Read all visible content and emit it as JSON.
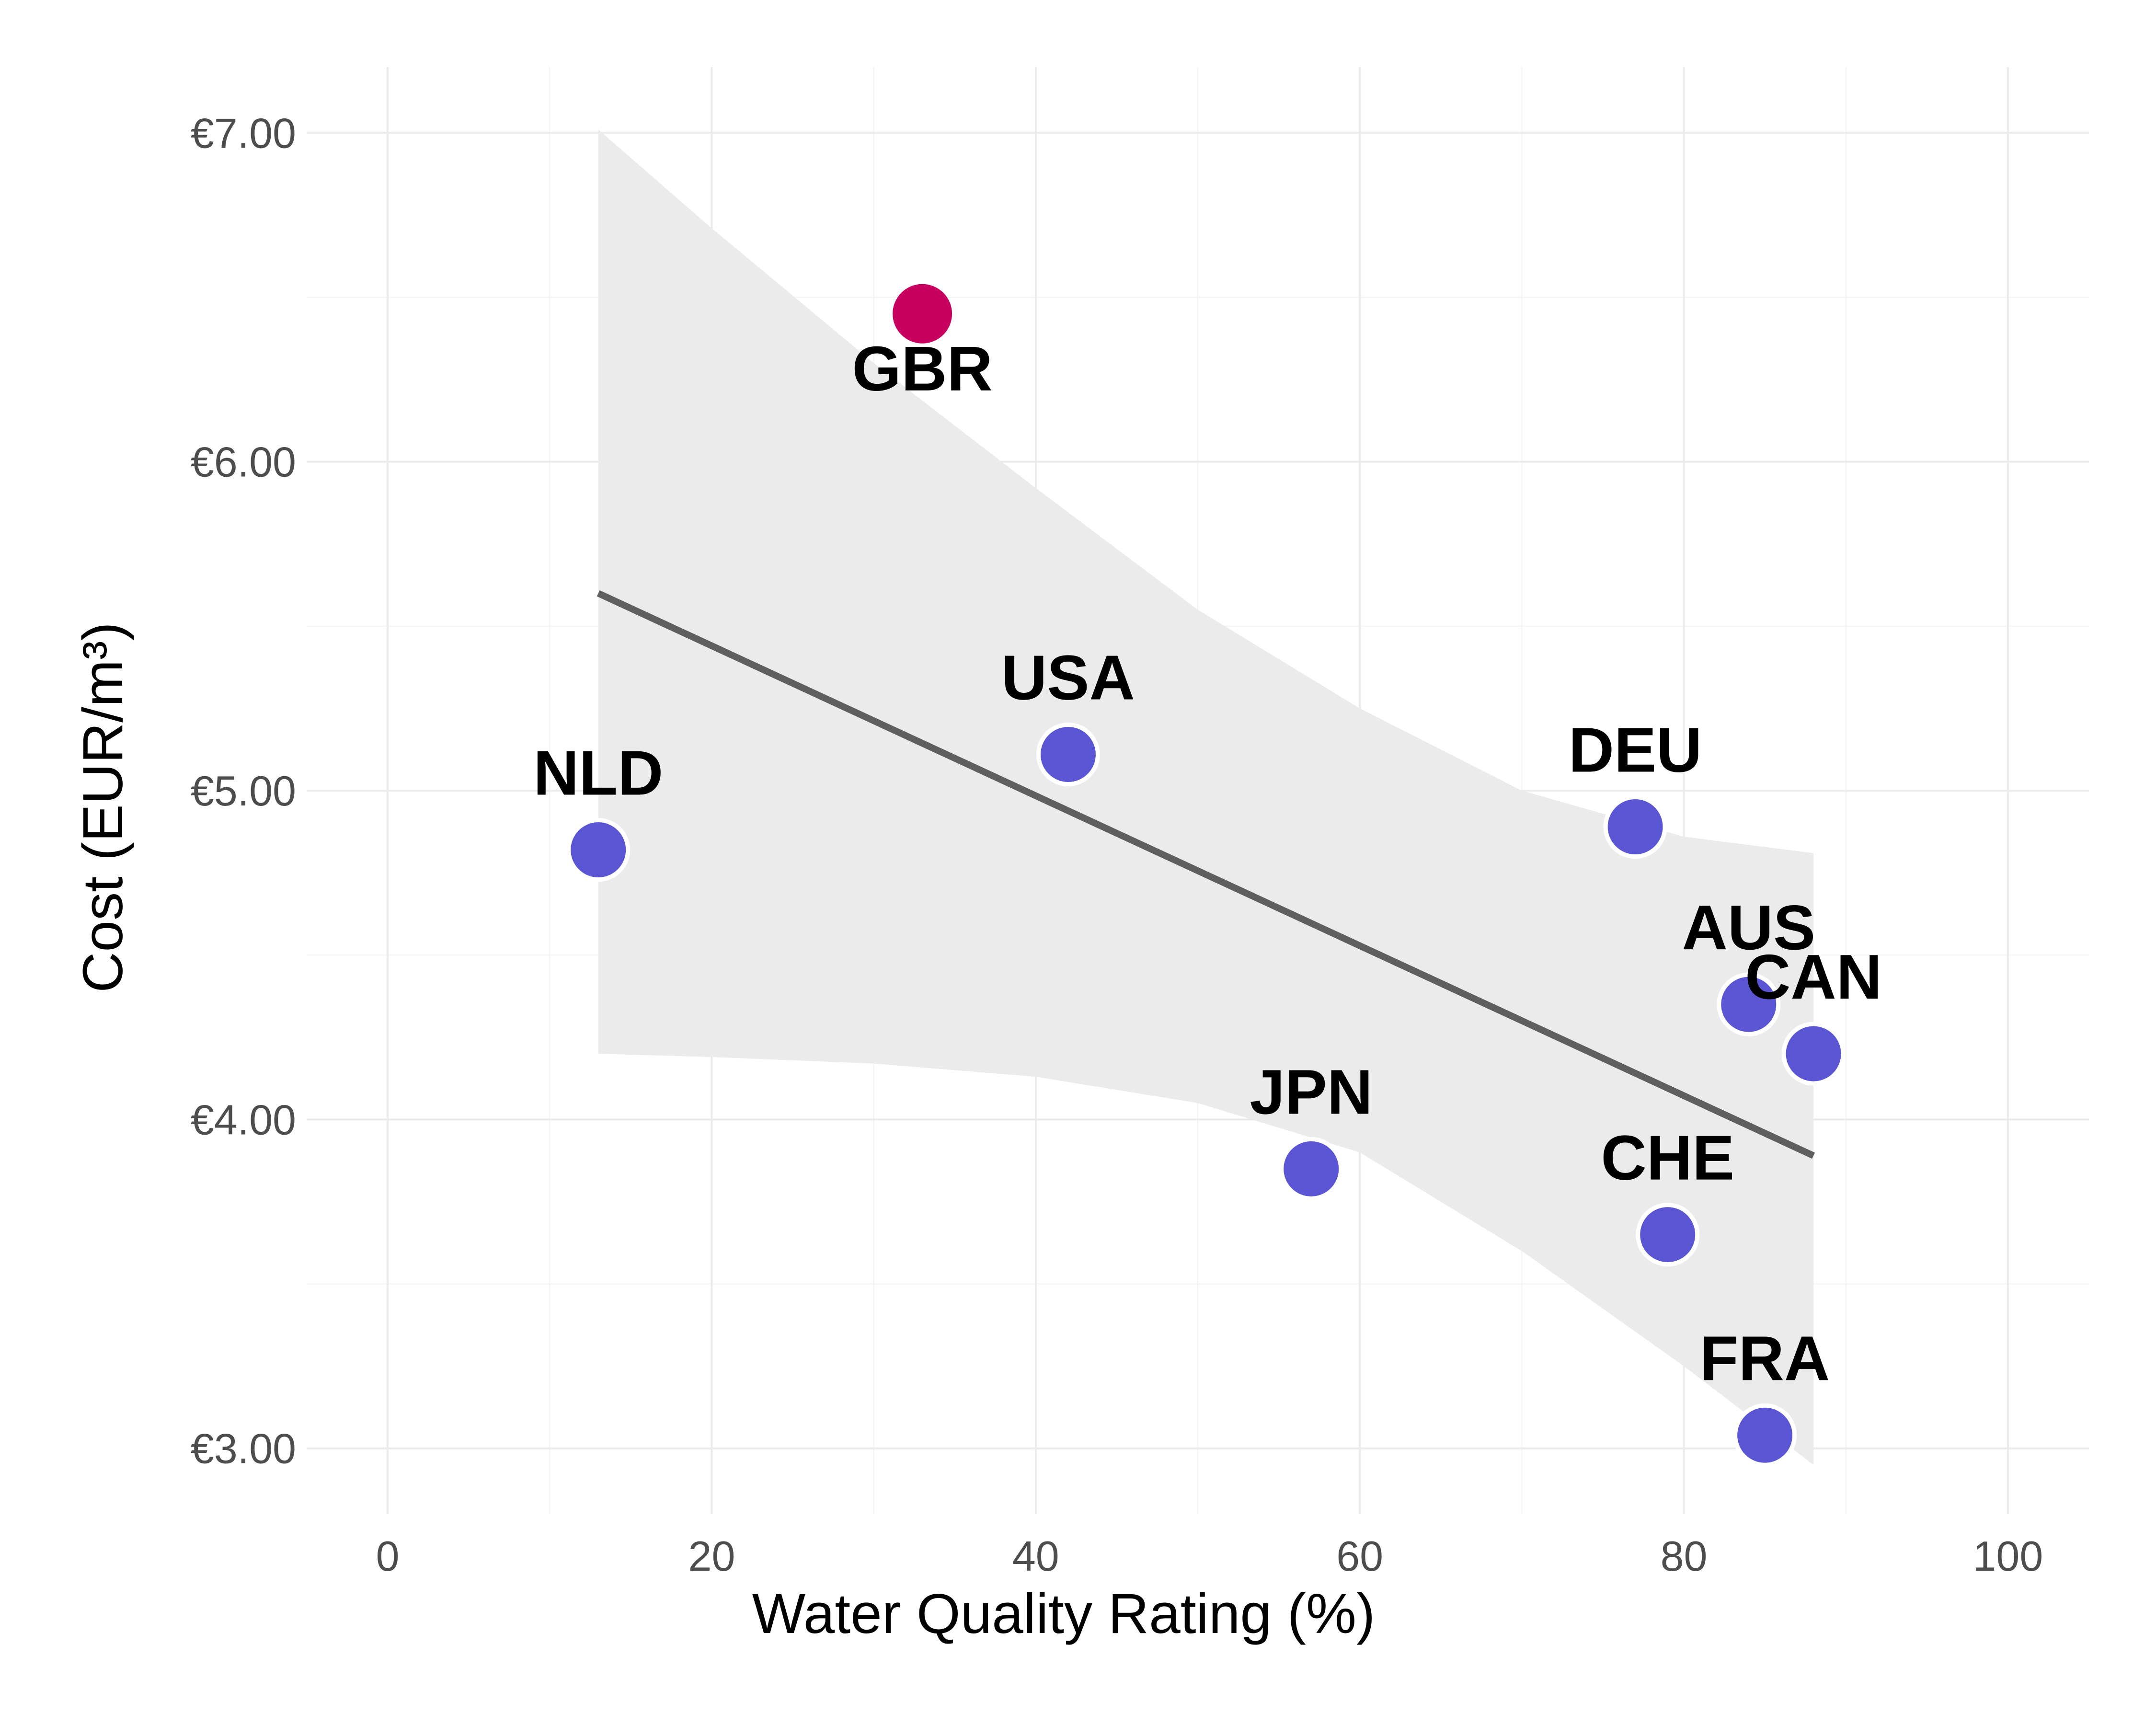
{
  "chart_data": {
    "type": "scatter",
    "title": "",
    "xlabel": "Water Quality Rating (%)",
    "ylabel": "Cost (EUR/m³)",
    "xlim": [
      -5,
      105
    ],
    "ylim": [
      2.8,
      7.2
    ],
    "x_ticks": [
      0,
      20,
      40,
      60,
      80,
      100
    ],
    "x_tick_labels": [
      "0",
      "20",
      "40",
      "60",
      "80",
      "100"
    ],
    "y_ticks": [
      3,
      4,
      5,
      6,
      7
    ],
    "y_tick_labels": [
      "€3.00",
      "€4.00",
      "€5.00",
      "€6.00",
      "€7.00"
    ],
    "grid": true,
    "legend": "none",
    "colors": {
      "normal": "#5a55d2",
      "highlight": "#c8005f",
      "fit_line": "#5f5f5f",
      "ribbon": "#ebebeb"
    },
    "points": [
      {
        "label": "NLD",
        "x": 13,
        "y": 4.82,
        "highlight": false,
        "label_pos": "above"
      },
      {
        "label": "GBR",
        "x": 33,
        "y": 6.45,
        "highlight": true,
        "label_pos": "below"
      },
      {
        "label": "USA",
        "x": 42,
        "y": 5.11,
        "highlight": false,
        "label_pos": "above"
      },
      {
        "label": "JPN",
        "x": 57,
        "y": 3.85,
        "highlight": false,
        "label_pos": "above"
      },
      {
        "label": "DEU",
        "x": 77,
        "y": 4.89,
        "highlight": false,
        "label_pos": "above"
      },
      {
        "label": "CHE",
        "x": 79,
        "y": 3.65,
        "highlight": false,
        "label_pos": "above"
      },
      {
        "label": "AUS",
        "x": 84,
        "y": 4.35,
        "highlight": false,
        "label_pos": "above"
      },
      {
        "label": "FRA",
        "x": 85,
        "y": 3.04,
        "highlight": false,
        "label_pos": "above"
      },
      {
        "label": "CAN",
        "x": 88,
        "y": 4.2,
        "highlight": false,
        "label_pos": "above"
      }
    ],
    "fit": {
      "method": "linear regression with confidence band",
      "line": [
        {
          "x": 13,
          "y": 5.6
        },
        {
          "x": 88,
          "y": 3.89
        }
      ],
      "band": [
        {
          "x": 13,
          "lower": 4.2,
          "upper": 7.01
        },
        {
          "x": 20,
          "lower": 4.19,
          "upper": 6.71
        },
        {
          "x": 30,
          "lower": 4.17,
          "upper": 6.3
        },
        {
          "x": 40,
          "lower": 4.13,
          "upper": 5.92
        },
        {
          "x": 50,
          "lower": 4.05,
          "upper": 5.55
        },
        {
          "x": 60,
          "lower": 3.9,
          "upper": 5.25
        },
        {
          "x": 70,
          "lower": 3.6,
          "upper": 5.0
        },
        {
          "x": 80,
          "lower": 3.25,
          "upper": 4.86
        },
        {
          "x": 88,
          "lower": 2.95,
          "upper": 4.81
        }
      ]
    }
  }
}
